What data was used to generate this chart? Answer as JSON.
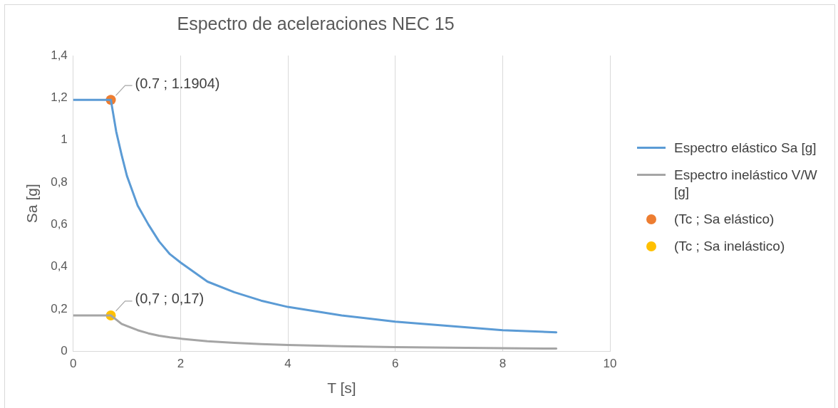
{
  "chart_data": {
    "type": "line",
    "title": "Espectro de aceleraciones NEC 15",
    "xlabel": "T [s]",
    "ylabel": "Sa [g]",
    "xlim": [
      0,
      10
    ],
    "xticks": [
      0,
      2,
      4,
      6,
      8,
      10
    ],
    "ylim": [
      0,
      1.4
    ],
    "yticks": [
      0,
      {
        "value": 0.2,
        "label": "0,2"
      },
      {
        "value": 0.4,
        "label": "0,4"
      },
      {
        "value": 0.6,
        "label": "0,6"
      },
      {
        "value": 0.8,
        "label": "0,8"
      },
      1,
      {
        "value": 1.2,
        "label": "1,2"
      },
      {
        "value": 1.4,
        "label": "1,4"
      }
    ],
    "grid": "x",
    "legend": "right",
    "marker": "none",
    "line_style": "solid",
    "series": [
      {
        "name": "Espectro elástico Sa [g]",
        "color": "#5b9bd5",
        "x": [
          0,
          0.7,
          0.8,
          0.9,
          1,
          1.2,
          1.4,
          1.6,
          1.8,
          2,
          2.5,
          3,
          3.5,
          4,
          5,
          6,
          7,
          8,
          9
        ],
        "values": [
          1.19,
          1.19,
          1.04,
          0.93,
          0.83,
          0.69,
          0.6,
          0.52,
          0.46,
          0.42,
          0.33,
          0.28,
          0.24,
          0.21,
          0.17,
          0.14,
          0.12,
          0.1,
          0.09
        ]
      },
      {
        "name": "Espectro inelástico V/W [g]",
        "color": "#a5a5a5",
        "x": [
          0,
          0.7,
          0.8,
          0.9,
          1,
          1.2,
          1.4,
          1.6,
          1.8,
          2,
          2.5,
          3,
          3.5,
          4,
          5,
          6,
          7,
          8,
          9
        ],
        "values": [
          0.17,
          0.17,
          0.15,
          0.13,
          0.12,
          0.1,
          0.085,
          0.074,
          0.066,
          0.06,
          0.048,
          0.04,
          0.034,
          0.03,
          0.024,
          0.02,
          0.017,
          0.015,
          0.013
        ]
      },
      {
        "name": "(Tc ; Sa elástico)",
        "type": "scatter",
        "marker": "circle",
        "color": "#ed7d31",
        "x": [
          0.7
        ],
        "values": [
          1.1904
        ]
      },
      {
        "name": "(Tc ; Sa inelástico)",
        "type": "scatter",
        "marker": "circle",
        "color": "#ffc000",
        "x": [
          0.7
        ],
        "values": [
          0.17
        ]
      }
    ],
    "annotations": [
      {
        "text": "(0.7 ; 1.1904)",
        "x": 0.7,
        "y": 1.1904
      },
      {
        "text": "(0,7 ; 0,17)",
        "x": 0.7,
        "y": 0.17
      }
    ]
  }
}
